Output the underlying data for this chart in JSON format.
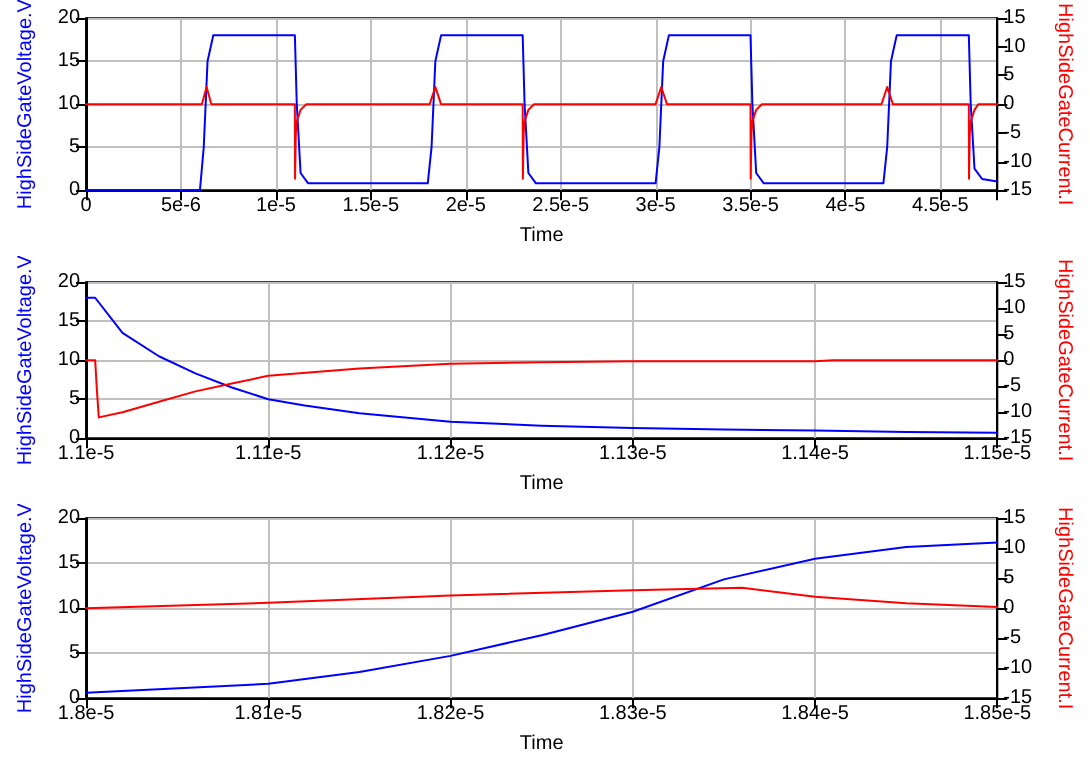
{
  "chart_data": [
    {
      "type": "line",
      "xlabel": "Time",
      "ylabel": "HighSideGateVoltage.V",
      "y2label": "HighSideGateCurrent.I",
      "grid": true,
      "marker": "none",
      "line_style": "solid",
      "xlim": [
        0,
        4.8e-05
      ],
      "xticks": [
        0,
        {
          "value": 5e-06,
          "label": "5e-6"
        },
        {
          "value": 1e-05,
          "label": "1e-5"
        },
        {
          "value": 1.5e-05,
          "label": "1.5e-5"
        },
        {
          "value": 2e-05,
          "label": "2e-5"
        },
        {
          "value": 2.5e-05,
          "label": "2.5e-5"
        },
        {
          "value": 3e-05,
          "label": "3e-5"
        },
        {
          "value": 3.5e-05,
          "label": "3.5e-5"
        },
        {
          "value": 4e-05,
          "label": "4e-5"
        },
        {
          "value": 4.5e-05,
          "label": "4.5e-5"
        }
      ],
      "ylim": [
        0,
        20
      ],
      "yticks": [
        0,
        5,
        10,
        15,
        20
      ],
      "y2lim": [
        -15,
        15
      ],
      "y2ticks": [
        -15,
        -10,
        -5,
        0,
        5,
        10,
        15
      ],
      "series": [
        {
          "color": "#0000ff",
          "x": [
            0,
            6e-06,
            6.2e-06,
            6.4e-06,
            6.7e-06,
            1.1e-05,
            1.11e-05,
            1.13e-05,
            1.17e-05,
            1.8e-05,
            1.82e-05,
            1.84e-05,
            1.87e-05,
            2.3e-05,
            2.31e-05,
            2.33e-05,
            2.37e-05,
            3e-05,
            3.02e-05,
            3.04e-05,
            3.07e-05,
            3.5e-05,
            3.51e-05,
            3.53e-05,
            3.57e-05,
            4.2e-05,
            4.22e-05,
            4.24e-05,
            4.27e-05,
            4.65e-05,
            4.66e-05,
            4.68e-05,
            4.72e-05,
            4.8e-05
          ],
          "values": [
            0,
            0,
            5,
            15,
            18,
            18,
            10,
            2,
            0.8,
            0.8,
            5,
            15,
            18,
            18,
            10,
            2,
            0.8,
            0.8,
            5,
            15,
            18,
            18,
            10,
            2,
            0.8,
            0.8,
            5,
            15,
            18,
            18,
            10,
            2.5,
            1.3,
            1.0
          ]
        },
        {
          "color": "#ff0000",
          "axis": "y2",
          "x": [
            0,
            6.1e-06,
            6.35e-06,
            6.6e-06,
            1.1e-05,
            1.101e-05,
            1.105e-05,
            1.11e-05,
            1.13e-05,
            1.16e-05,
            1.81e-05,
            1.84e-05,
            1.87e-05,
            2.3e-05,
            2.301e-05,
            2.305e-05,
            2.31e-05,
            2.33e-05,
            2.36e-05,
            3e-05,
            3.03e-05,
            3.06e-05,
            3.5e-05,
            3.501e-05,
            3.505e-05,
            3.51e-05,
            3.53e-05,
            3.56e-05,
            4.19e-05,
            4.22e-05,
            4.25e-05,
            4.65e-05,
            4.651e-05,
            4.655e-05,
            4.66e-05,
            4.68e-05,
            4.7e-05,
            4.8e-05
          ],
          "values": [
            0,
            0,
            3,
            0,
            0,
            -13,
            -5,
            -3,
            -1,
            0,
            0,
            3,
            0,
            0,
            -13,
            -5,
            -3,
            -1,
            0,
            0,
            3,
            0,
            0,
            -13,
            -5,
            -3,
            -1,
            0,
            0,
            3,
            0,
            0,
            -13,
            -5,
            -3,
            -1,
            0,
            0
          ]
        }
      ]
    },
    {
      "type": "line",
      "xlabel": "Time",
      "ylabel": "HighSideGateVoltage.V",
      "y2label": "HighSideGateCurrent.I",
      "grid": true,
      "marker": "none",
      "line_style": "solid",
      "xlim": [
        1.1e-05,
        1.15e-05
      ],
      "xticks": [
        {
          "value": 1.1e-05,
          "label": "1.1e-5"
        },
        {
          "value": 1.11e-05,
          "label": "1.11e-5"
        },
        {
          "value": 1.12e-05,
          "label": "1.12e-5"
        },
        {
          "value": 1.13e-05,
          "label": "1.13e-5"
        },
        {
          "value": 1.14e-05,
          "label": "1.14e-5"
        },
        {
          "value": 1.15e-05,
          "label": "1.15e-5"
        }
      ],
      "ylim": [
        0,
        20
      ],
      "yticks": [
        0,
        5,
        10,
        15,
        20
      ],
      "y2lim": [
        -15,
        15
      ],
      "y2ticks": [
        -15,
        -10,
        -5,
        0,
        5,
        10,
        15
      ],
      "series": [
        {
          "color": "#0000ff",
          "x": [
            1.1e-05,
            1.1005e-05,
            1.102e-05,
            1.104e-05,
            1.106e-05,
            1.108e-05,
            1.11e-05,
            1.112e-05,
            1.115e-05,
            1.12e-05,
            1.125e-05,
            1.13e-05,
            1.135e-05,
            1.14e-05,
            1.145e-05,
            1.15e-05
          ],
          "values": [
            18,
            18,
            13.5,
            10.5,
            8.3,
            6.5,
            5,
            4.2,
            3.2,
            2.1,
            1.6,
            1.3,
            1.1,
            1.0,
            0.8,
            0.7
          ]
        },
        {
          "color": "#ff0000",
          "axis": "y2",
          "x": [
            1.1e-05,
            1.1005e-05,
            1.1006e-05,
            1.1007e-05,
            1.102e-05,
            1.104e-05,
            1.106e-05,
            1.108e-05,
            1.11e-05,
            1.115e-05,
            1.12e-05,
            1.125e-05,
            1.13e-05,
            1.14e-05,
            1.141e-05,
            1.15e-05
          ],
          "values": [
            0,
            0,
            -6,
            -11,
            -10,
            -8,
            -6,
            -4.5,
            -3,
            -1.6,
            -0.7,
            -0.4,
            -0.2,
            -0.2,
            0,
            0
          ]
        }
      ]
    },
    {
      "type": "line",
      "xlabel": "Time",
      "ylabel": "HighSideGateVoltage.V",
      "y2label": "HighSideGateCurrent.I",
      "grid": true,
      "marker": "none",
      "line_style": "solid",
      "xlim": [
        1.8e-05,
        1.85e-05
      ],
      "xticks": [
        {
          "value": 1.8e-05,
          "label": "1.8e-5"
        },
        {
          "value": 1.81e-05,
          "label": "1.81e-5"
        },
        {
          "value": 1.82e-05,
          "label": "1.82e-5"
        },
        {
          "value": 1.83e-05,
          "label": "1.83e-5"
        },
        {
          "value": 1.84e-05,
          "label": "1.84e-5"
        },
        {
          "value": 1.85e-05,
          "label": "1.85e-5"
        }
      ],
      "ylim": [
        0,
        20
      ],
      "yticks": [
        0,
        5,
        10,
        15,
        20
      ],
      "y2lim": [
        -15,
        15
      ],
      "y2ticks": [
        -15,
        -10,
        -5,
        0,
        5,
        10,
        15
      ],
      "series": [
        {
          "color": "#0000ff",
          "x": [
            1.8e-05,
            1.81e-05,
            1.815e-05,
            1.82e-05,
            1.825e-05,
            1.83e-05,
            1.835e-05,
            1.84e-05,
            1.845e-05,
            1.85e-05
          ],
          "values": [
            0.6,
            1.6,
            2.9,
            4.7,
            7.0,
            9.6,
            13.2,
            15.5,
            16.8,
            17.3
          ]
        },
        {
          "color": "#ff0000",
          "axis": "y2",
          "x": [
            1.8e-05,
            1.81e-05,
            1.82e-05,
            1.83e-05,
            1.836e-05,
            1.84e-05,
            1.845e-05,
            1.85e-05
          ],
          "values": [
            0,
            0.9,
            2.1,
            3.0,
            3.4,
            1.9,
            0.8,
            0.2
          ]
        }
      ]
    }
  ]
}
